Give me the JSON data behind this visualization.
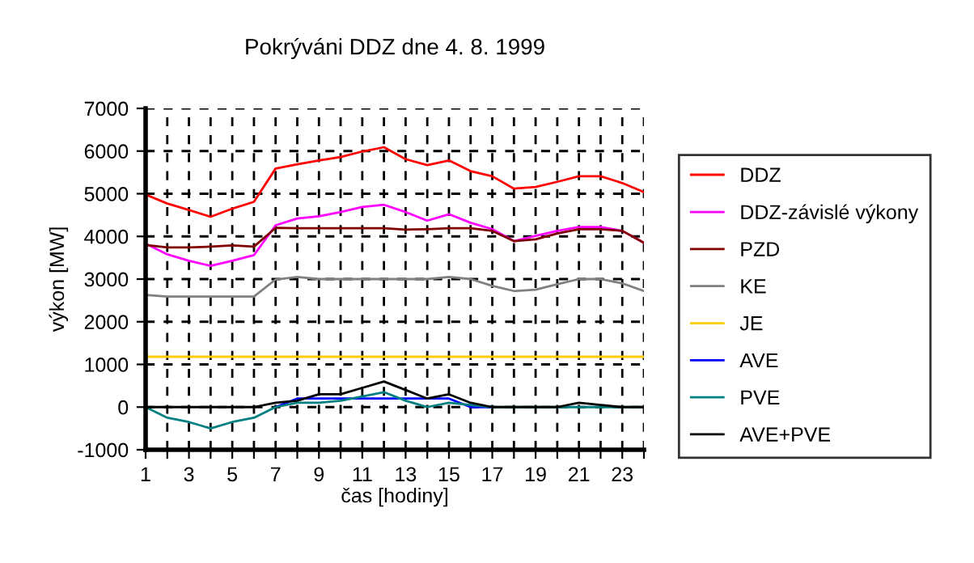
{
  "chart_data": {
    "type": "line",
    "title": "Pokrýváni DDZ dne 4. 8. 1999",
    "xlabel": "čas [hodiny]",
    "ylabel": "výkon [MW]",
    "x": [
      1,
      2,
      3,
      4,
      5,
      6,
      7,
      8,
      9,
      10,
      11,
      12,
      13,
      14,
      15,
      16,
      17,
      18,
      19,
      20,
      21,
      22,
      23,
      24
    ],
    "series": [
      {
        "name": "DDZ",
        "color": "#ff0000",
        "values": [
          4980,
          4770,
          4620,
          4460,
          4650,
          4810,
          5590,
          5690,
          5780,
          5860,
          5990,
          6090,
          5810,
          5670,
          5780,
          5530,
          5410,
          5120,
          5160,
          5280,
          5410,
          5410,
          5250,
          5040
        ]
      },
      {
        "name": "DDZ-závislé výkony",
        "color": "#ff00ff",
        "values": [
          3830,
          3580,
          3430,
          3310,
          3430,
          3560,
          4260,
          4420,
          4470,
          4570,
          4690,
          4740,
          4570,
          4370,
          4520,
          4320,
          4170,
          3890,
          4010,
          4130,
          4220,
          4220,
          4130,
          3850
        ]
      },
      {
        "name": "PZD",
        "color": "#800000",
        "values": [
          3800,
          3740,
          3740,
          3760,
          3790,
          3760,
          4200,
          4190,
          4190,
          4190,
          4190,
          4190,
          4160,
          4170,
          4190,
          4190,
          4130,
          3890,
          3930,
          4070,
          4170,
          4170,
          4130,
          3850
        ]
      },
      {
        "name": "KE",
        "color": "#808080",
        "values": [
          2630,
          2590,
          2590,
          2590,
          2590,
          2590,
          2990,
          3050,
          3000,
          3000,
          3000,
          3000,
          3000,
          3000,
          3050,
          3000,
          2840,
          2720,
          2750,
          2880,
          3000,
          3000,
          2900,
          2720
        ]
      },
      {
        "name": "JE",
        "color": "#ffcc00",
        "values": [
          1180,
          1180,
          1180,
          1180,
          1180,
          1180,
          1180,
          1180,
          1180,
          1180,
          1180,
          1180,
          1180,
          1180,
          1180,
          1180,
          1180,
          1180,
          1180,
          1180,
          1180,
          1180,
          1180,
          1180
        ]
      },
      {
        "name": "AVE",
        "color": "#0000ff",
        "values": [
          null,
          null,
          null,
          null,
          null,
          null,
          0,
          200,
          200,
          200,
          200,
          200,
          200,
          200,
          200,
          0,
          0,
          null,
          null,
          null,
          null,
          null,
          null,
          null
        ]
      },
      {
        "name": "PVE",
        "color": "#008080",
        "values": [
          0,
          -250,
          -350,
          -500,
          -350,
          -250,
          0,
          100,
          100,
          150,
          250,
          350,
          150,
          0,
          100,
          50,
          0,
          0,
          0,
          0,
          0,
          0,
          0,
          0
        ]
      },
      {
        "name": "AVE+PVE",
        "color": "#000000",
        "values": [
          0,
          0,
          0,
          0,
          0,
          0,
          100,
          150,
          300,
          300,
          450,
          600,
          400,
          200,
          300,
          100,
          0,
          0,
          0,
          0,
          100,
          50,
          0,
          0
        ]
      }
    ],
    "xlim": [
      1,
      24
    ],
    "xticks": [
      1,
      {
        "value": 2,
        "label": null
      },
      3,
      {
        "value": 4,
        "label": null
      },
      5,
      {
        "value": 6,
        "label": null
      },
      7,
      {
        "value": 8,
        "label": null
      },
      9,
      {
        "value": 10,
        "label": null
      },
      11,
      {
        "value": 12,
        "label": null
      },
      13,
      {
        "value": 14,
        "label": null
      },
      15,
      {
        "value": 16,
        "label": null
      },
      17,
      {
        "value": 18,
        "label": null
      },
      19,
      {
        "value": 20,
        "label": null
      },
      21,
      {
        "value": 22,
        "label": null
      },
      23,
      {
        "value": 24,
        "label": null
      }
    ],
    "ylim": [
      -1000,
      7000
    ],
    "yticks": [
      -1000,
      0,
      1000,
      2000,
      3000,
      4000,
      5000,
      6000,
      7000
    ],
    "grid": true,
    "legend": "right",
    "marker": "none",
    "line_style": "solid"
  }
}
